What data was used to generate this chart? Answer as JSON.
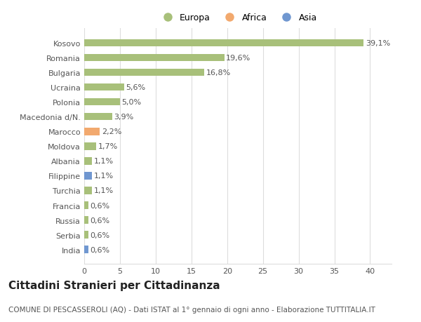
{
  "countries": [
    "Kosovo",
    "Romania",
    "Bulgaria",
    "Ucraina",
    "Polonia",
    "Macedonia d/N.",
    "Marocco",
    "Moldova",
    "Albania",
    "Filippine",
    "Turchia",
    "Francia",
    "Russia",
    "Serbia",
    "India"
  ],
  "values": [
    39.1,
    19.6,
    16.8,
    5.6,
    5.0,
    3.9,
    2.2,
    1.7,
    1.1,
    1.1,
    1.1,
    0.6,
    0.6,
    0.6,
    0.6
  ],
  "labels": [
    "39,1%",
    "19,6%",
    "16,8%",
    "5,6%",
    "5,0%",
    "3,9%",
    "2,2%",
    "1,7%",
    "1,1%",
    "1,1%",
    "1,1%",
    "0,6%",
    "0,6%",
    "0,6%",
    "0,6%"
  ],
  "continents": [
    "Europa",
    "Europa",
    "Europa",
    "Europa",
    "Europa",
    "Europa",
    "Africa",
    "Europa",
    "Europa",
    "Asia",
    "Europa",
    "Europa",
    "Europa",
    "Europa",
    "Asia"
  ],
  "colors": {
    "Europa": "#a8c07a",
    "Africa": "#f2a96e",
    "Asia": "#7097d0"
  },
  "xlim": [
    0,
    43
  ],
  "xticks": [
    0,
    5,
    10,
    15,
    20,
    25,
    30,
    35,
    40
  ],
  "title": "Cittadini Stranieri per Cittadinanza",
  "subtitle": "COMUNE DI PESCASSEROLI (AQ) - Dati ISTAT al 1° gennaio di ogni anno - Elaborazione TUTTITALIA.IT",
  "background_color": "#ffffff",
  "plot_bg_color": "#ffffff",
  "grid_color": "#dddddd",
  "bar_height": 0.5,
  "title_fontsize": 11,
  "subtitle_fontsize": 7.5,
  "tick_fontsize": 8,
  "label_fontsize": 8,
  "legend_fontsize": 9
}
